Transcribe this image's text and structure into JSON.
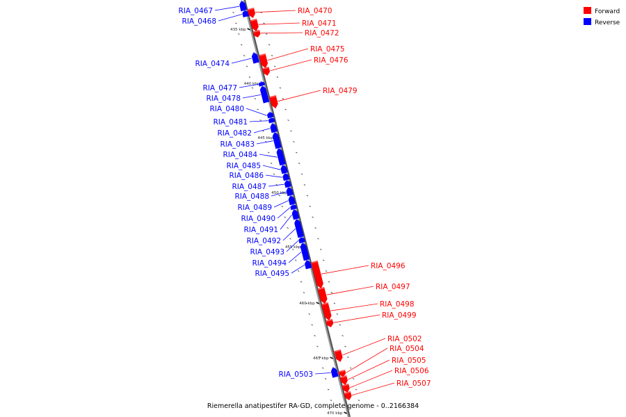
{
  "caption": "Riemerella anatipestifer RA-GD, complete genome - 0..2166384",
  "legend": [
    {
      "label": "Forward",
      "color": "#ff0000"
    },
    {
      "label": "Reverse",
      "color": "#0000ff"
    }
  ],
  "colors": {
    "forward": "#ff0000",
    "reverse": "#0000ff",
    "backbone": "#808080"
  },
  "ticks": [
    "435 kbp",
    "440 kbp",
    "445 kbp",
    "450 kbp",
    "455 kbp",
    "460 kbp",
    "465 kbp",
    "470 kbp"
  ],
  "genes": [
    {
      "name": "RIA_0467",
      "strand": "reverse"
    },
    {
      "name": "RIA_0468",
      "strand": "reverse"
    },
    {
      "name": "RIA_0470",
      "strand": "forward"
    },
    {
      "name": "RIA_0471",
      "strand": "forward"
    },
    {
      "name": "RIA_0472",
      "strand": "forward"
    },
    {
      "name": "RIA_0474",
      "strand": "reverse"
    },
    {
      "name": "RIA_0475",
      "strand": "forward"
    },
    {
      "name": "RIA_0476",
      "strand": "forward"
    },
    {
      "name": "RIA_0477",
      "strand": "reverse"
    },
    {
      "name": "RIA_0478",
      "strand": "reverse"
    },
    {
      "name": "RIA_0479",
      "strand": "forward"
    },
    {
      "name": "RIA_0480",
      "strand": "reverse"
    },
    {
      "name": "RIA_0481",
      "strand": "reverse"
    },
    {
      "name": "RIA_0482",
      "strand": "reverse"
    },
    {
      "name": "RIA_0483",
      "strand": "reverse"
    },
    {
      "name": "RIA_0484",
      "strand": "reverse"
    },
    {
      "name": "RIA_0485",
      "strand": "reverse"
    },
    {
      "name": "RIA_0486",
      "strand": "reverse"
    },
    {
      "name": "RIA_0487",
      "strand": "reverse"
    },
    {
      "name": "RIA_0488",
      "strand": "reverse"
    },
    {
      "name": "RIA_0489",
      "strand": "reverse"
    },
    {
      "name": "RIA_0490",
      "strand": "reverse"
    },
    {
      "name": "RIA_0491",
      "strand": "reverse"
    },
    {
      "name": "RIA_0492",
      "strand": "reverse"
    },
    {
      "name": "RIA_0493",
      "strand": "reverse"
    },
    {
      "name": "RIA_0494",
      "strand": "reverse"
    },
    {
      "name": "RIA_0495",
      "strand": "reverse"
    },
    {
      "name": "RIA_0496",
      "strand": "forward"
    },
    {
      "name": "RIA_0497",
      "strand": "forward"
    },
    {
      "name": "RIA_0498",
      "strand": "forward"
    },
    {
      "name": "RIA_0499",
      "strand": "forward"
    },
    {
      "name": "RIA_0502",
      "strand": "forward"
    },
    {
      "name": "RIA_0504",
      "strand": "forward"
    },
    {
      "name": "RIA_0505",
      "strand": "forward"
    },
    {
      "name": "RIA_0506",
      "strand": "forward"
    },
    {
      "name": "RIA_0507",
      "strand": "forward"
    },
    {
      "name": "RIA_0503",
      "strand": "reverse"
    }
  ]
}
